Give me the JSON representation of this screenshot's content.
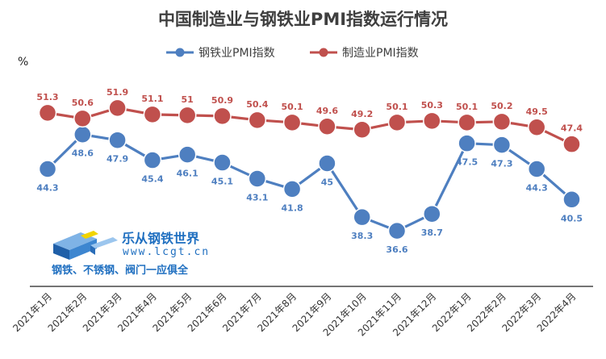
{
  "chart_data": {
    "type": "line",
    "title": "中国制造业与钢铁业PMI指数运行情况",
    "ylabel": "%",
    "xlabel": "",
    "categories": [
      "2021年1月",
      "2021年2月",
      "2021年3月",
      "2021年4月",
      "2021年5月",
      "2021年6月",
      "2021年7月",
      "2021年8月",
      "2021年9月",
      "2021年10月",
      "2021年11月",
      "2021年12月",
      "2022年1月",
      "2022年2月",
      "2022年3月",
      "2022年4月"
    ],
    "series": [
      {
        "name": "钢铁业PMI指数",
        "color": "#4e7fc0",
        "values": [
          44.3,
          48.6,
          47.9,
          45.4,
          46.1,
          45.1,
          43.1,
          41.8,
          45,
          38.3,
          36.6,
          38.7,
          47.5,
          47.3,
          44.3,
          40.5
        ]
      },
      {
        "name": "制造业PMI指数",
        "color": "#c0504d",
        "values": [
          51.3,
          50.6,
          51.9,
          51.1,
          51,
          50.9,
          50.4,
          50.1,
          49.6,
          49.2,
          50.1,
          50.3,
          50.1,
          50.2,
          49.5,
          47.4
        ]
      }
    ],
    "ylim": [
      35,
      53.5
    ],
    "grid": false,
    "legend": "top"
  },
  "watermark": {
    "name": "乐从钢铁世界",
    "url": "www.lcgt.cn",
    "slogan": "钢铁、不锈钢、阀门一应俱全"
  }
}
